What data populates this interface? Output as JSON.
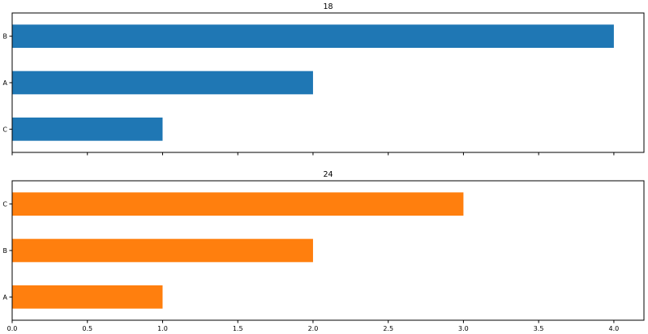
{
  "chart_data": [
    {
      "type": "bar",
      "orientation": "horizontal",
      "title": "18",
      "categories": [
        "C",
        "A",
        "B"
      ],
      "values": [
        1,
        2,
        4
      ],
      "color": "#1f77b4",
      "xlim": [
        0,
        4.2
      ],
      "xticks": [
        0.0,
        0.5,
        1.0,
        1.5,
        2.0,
        2.5,
        3.0,
        3.5,
        4.0
      ],
      "show_xtick_labels": false,
      "grid": false,
      "legend": "none"
    },
    {
      "type": "bar",
      "orientation": "horizontal",
      "title": "24",
      "categories": [
        "A",
        "B",
        "C"
      ],
      "values": [
        1,
        2,
        3
      ],
      "color": "#ff7f0e",
      "xlim": [
        0,
        4.2
      ],
      "xticks": [
        0.0,
        0.5,
        1.0,
        1.5,
        2.0,
        2.5,
        3.0,
        3.5,
        4.0
      ],
      "xtick_labels": [
        "0.0",
        "0.5",
        "1.0",
        "1.5",
        "2.0",
        "2.5",
        "3.0",
        "3.5",
        "4.0"
      ],
      "show_xtick_labels": true,
      "grid": false,
      "legend": "none"
    }
  ]
}
